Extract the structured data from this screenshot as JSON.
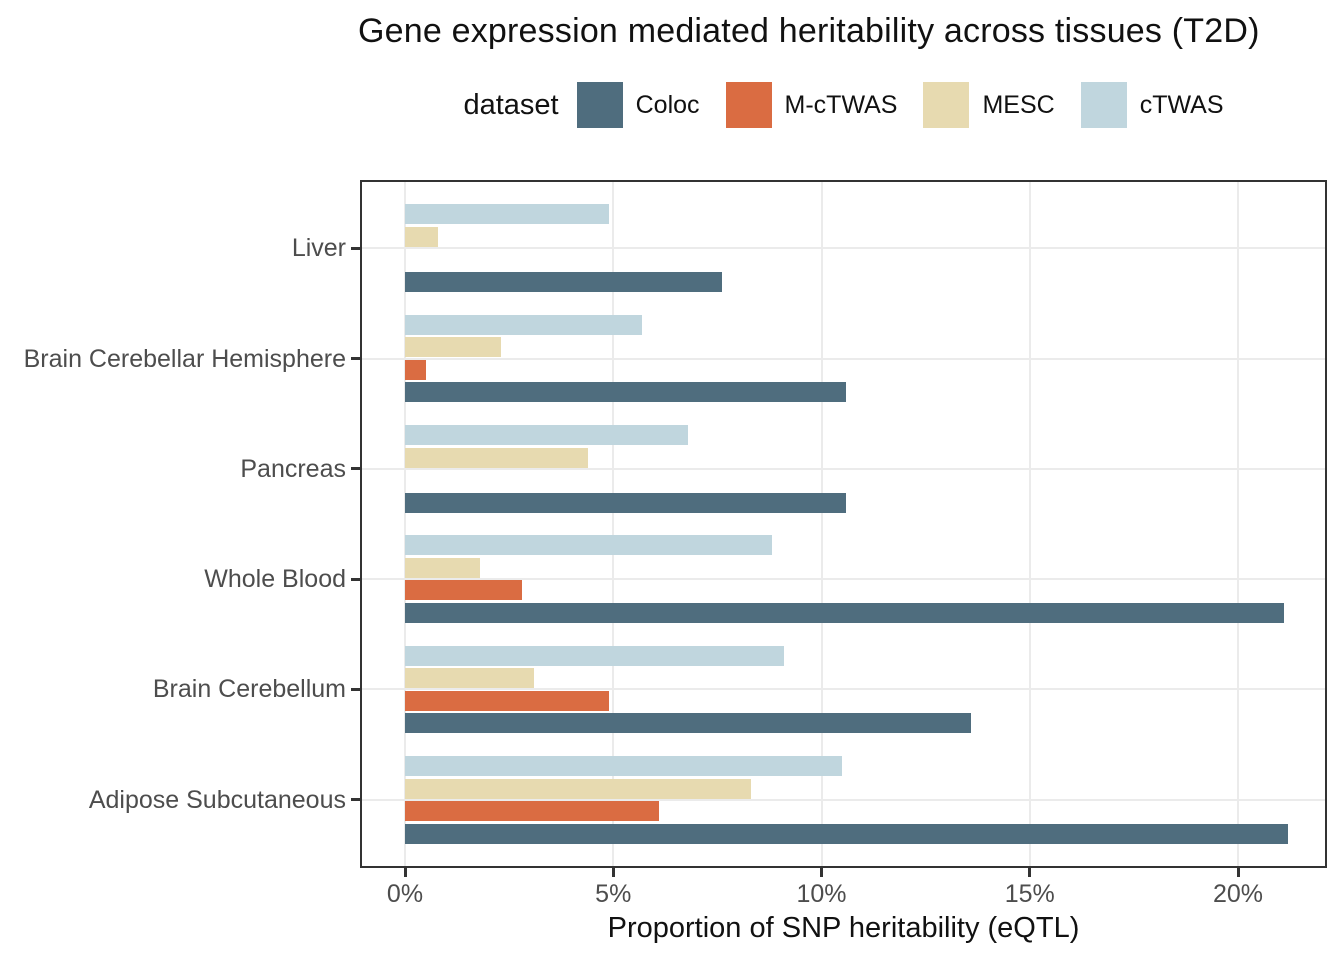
{
  "title": "Gene expression mediated heritability across tissues (T2D)",
  "legend": {
    "title": "dataset",
    "items": [
      {
        "label": "Coloc",
        "color": "#4f6d7e"
      },
      {
        "label": "M-cTWAS",
        "color": "#da6c42"
      },
      {
        "label": "MESC",
        "color": "#e7dab0"
      },
      {
        "label": "cTWAS",
        "color": "#c0d6de"
      }
    ]
  },
  "chart_data": {
    "type": "bar",
    "orientation": "horizontal",
    "title": "Gene expression mediated heritability across tissues (T2D)",
    "xlabel": "Proportion of SNP heritability (eQTL)",
    "ylabel": "",
    "categories": [
      "Liver",
      "Brain Cerebellar Hemisphere",
      "Pancreas",
      "Whole Blood",
      "Brain Cerebellum",
      "Adipose Subcutaneous"
    ],
    "categories_order_note": "listed top to bottom as displayed",
    "series_order_note": "series listed in within-group draw order, top bar to bottom bar; 0 = no bar shown",
    "series": [
      {
        "name": "cTWAS",
        "color": "#c0d6de",
        "values": [
          4.9,
          5.7,
          6.8,
          8.8,
          9.1,
          10.5
        ]
      },
      {
        "name": "MESC",
        "color": "#e7dab0",
        "values": [
          0.8,
          2.3,
          4.4,
          1.8,
          3.1,
          8.3
        ]
      },
      {
        "name": "M-cTWAS",
        "color": "#da6c42",
        "values": [
          0,
          0.5,
          0,
          2.8,
          4.9,
          6.1
        ]
      },
      {
        "name": "Coloc",
        "color": "#4f6d7e",
        "values": [
          7.6,
          10.6,
          10.6,
          21.1,
          13.6,
          21.2
        ]
      }
    ],
    "x_ticks": [
      "0%",
      "5%",
      "10%",
      "15%",
      "20%"
    ],
    "x_tick_values": [
      0,
      5,
      10,
      15,
      20
    ],
    "xlim": [
      -1.1,
      22.1
    ],
    "grid": true,
    "grid_color": "#ebebeb",
    "panel_border_color": "#333333",
    "axis_text_color": "#4d4d4d",
    "legend_position": "top"
  }
}
